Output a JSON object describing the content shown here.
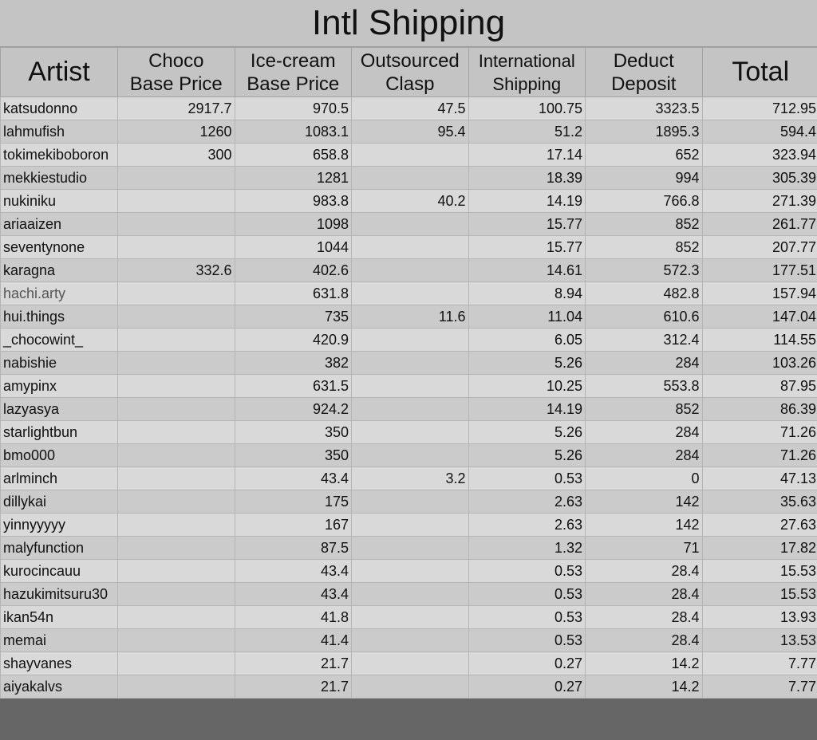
{
  "title": "Intl Shipping",
  "headers": [
    {
      "line1": "Artist",
      "line2": ""
    },
    {
      "line1": "Choco",
      "line2": "Base Price"
    },
    {
      "line1": "Ice-cream",
      "line2": "Base Price"
    },
    {
      "line1": "Outsourced",
      "line2": "Clasp"
    },
    {
      "line1": "International",
      "line2": "Shipping"
    },
    {
      "line1": "Deduct",
      "line2": "Deposit"
    },
    {
      "line1": "Total",
      "line2": ""
    }
  ],
  "rows": [
    [
      "katsudonno",
      "2917.7",
      "970.5",
      "47.5",
      "100.75",
      "3323.5",
      "712.95"
    ],
    [
      "lahmufish",
      "1260",
      "1083.1",
      "95.4",
      "51.2",
      "1895.3",
      "594.4"
    ],
    [
      "tokimekiboboron",
      "300",
      "658.8",
      "",
      "17.14",
      "652",
      "323.94"
    ],
    [
      "mekkiestudio",
      "",
      "1281",
      "",
      "18.39",
      "994",
      "305.39"
    ],
    [
      "nukiniku",
      "",
      "983.8",
      "40.2",
      "14.19",
      "766.8",
      "271.39"
    ],
    [
      "ariaaizen",
      "",
      "1098",
      "",
      "15.77",
      "852",
      "261.77"
    ],
    [
      "seventynone",
      "",
      "1044",
      "",
      "15.77",
      "852",
      "207.77"
    ],
    [
      "karagna",
      "332.6",
      "402.6",
      "",
      "14.61",
      "572.3",
      "177.51"
    ],
    [
      "hachi.arty",
      "",
      "631.8",
      "",
      "8.94",
      "482.8",
      "157.94"
    ],
    [
      "hui.things",
      "",
      "735",
      "11.6",
      "11.04",
      "610.6",
      "147.04"
    ],
    [
      "_chocowint_",
      "",
      "420.9",
      "",
      "6.05",
      "312.4",
      "114.55"
    ],
    [
      "nabishie",
      "",
      "382",
      "",
      "5.26",
      "284",
      "103.26"
    ],
    [
      "amypinx",
      "",
      "631.5",
      "",
      "10.25",
      "553.8",
      "87.95"
    ],
    [
      "lazyasya",
      "",
      "924.2",
      "",
      "14.19",
      "852",
      "86.39"
    ],
    [
      "starlightbun",
      "",
      "350",
      "",
      "5.26",
      "284",
      "71.26"
    ],
    [
      "bmo000",
      "",
      "350",
      "",
      "5.26",
      "284",
      "71.26"
    ],
    [
      "arlminch",
      "",
      "43.4",
      "3.2",
      "0.53",
      "0",
      "47.13"
    ],
    [
      "dillykai",
      "",
      "175",
      "",
      "2.63",
      "142",
      "35.63"
    ],
    [
      "yinnyyyyy",
      "",
      "167",
      "",
      "2.63",
      "142",
      "27.63"
    ],
    [
      "malyfunction",
      "",
      "87.5",
      "",
      "1.32",
      "71",
      "17.82"
    ],
    [
      "kurocincauu",
      "",
      "43.4",
      "",
      "0.53",
      "28.4",
      "15.53"
    ],
    [
      "hazukimitsuru30",
      "",
      "43.4",
      "",
      "0.53",
      "28.4",
      "15.53"
    ],
    [
      "ikan54n",
      "",
      "41.8",
      "",
      "0.53",
      "28.4",
      "13.93"
    ],
    [
      "memai",
      "",
      "41.4",
      "",
      "0.53",
      "28.4",
      "13.53"
    ],
    [
      "shayvanes",
      "",
      "21.7",
      "",
      "0.27",
      "14.2",
      "7.77"
    ],
    [
      "aiyakalvs",
      "",
      "21.7",
      "",
      "0.27",
      "14.2",
      "7.77"
    ]
  ]
}
